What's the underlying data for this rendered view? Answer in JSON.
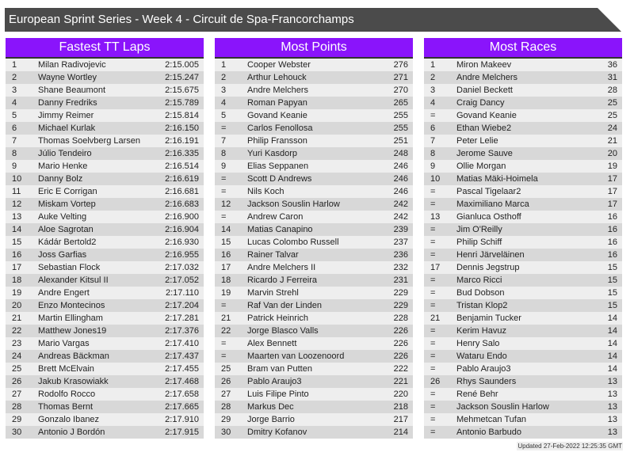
{
  "title": "European Sprint Series - Week 4 - Circuit de Spa-Francorchamps",
  "colors": {
    "title_bar": "#4b4b4b",
    "header": "#8a14fb",
    "row_light": "#eeeeee",
    "row_dark": "#d8d8d8"
  },
  "tables": [
    {
      "title": "Fastest TT Laps",
      "rows": [
        [
          "1",
          "Milan Radivojevic",
          "2:15.005"
        ],
        [
          "2",
          "Wayne Wortley",
          "2:15.247"
        ],
        [
          "3",
          "Shane Beaumont",
          "2:15.675"
        ],
        [
          "4",
          "Danny Fredriks",
          "2:15.789"
        ],
        [
          "5",
          "Jimmy Reimer",
          "2:15.814"
        ],
        [
          "6",
          "Michael Kurlak",
          "2:16.150"
        ],
        [
          "7",
          "Thomas Soelvberg Larsen",
          "2:16.191"
        ],
        [
          "8",
          "Júlio Tendeiro",
          "2:16.335"
        ],
        [
          "9",
          "Mario Henke",
          "2:16.514"
        ],
        [
          "10",
          "Danny Bolz",
          "2:16.619"
        ],
        [
          "11",
          "Eric E Corrigan",
          "2:16.681"
        ],
        [
          "12",
          "Miskam Vortep",
          "2:16.683"
        ],
        [
          "13",
          "Auke Velting",
          "2:16.900"
        ],
        [
          "14",
          "Aloe Sagrotan",
          "2:16.904"
        ],
        [
          "15",
          "Kádár Bertold2",
          "2:16.930"
        ],
        [
          "16",
          "Joss Garfias",
          "2:16.955"
        ],
        [
          "17",
          "Sebastian Flock",
          "2:17.032"
        ],
        [
          "18",
          "Alexander Kitsul II",
          "2:17.052"
        ],
        [
          "19",
          "Andre Engert",
          "2:17.110"
        ],
        [
          "20",
          "Enzo Montecinos",
          "2:17.204"
        ],
        [
          "21",
          "Martin Ellingham",
          "2:17.281"
        ],
        [
          "22",
          "Matthew Jones19",
          "2:17.376"
        ],
        [
          "23",
          "Mario Vargas",
          "2:17.410"
        ],
        [
          "24",
          "Andreas Bäckman",
          "2:17.437"
        ],
        [
          "25",
          "Brett McElvain",
          "2:17.455"
        ],
        [
          "26",
          "Jakub Krasowiakk",
          "2:17.468"
        ],
        [
          "27",
          "Rodolfo Rocco",
          "2:17.658"
        ],
        [
          "28",
          "Thomas Bernt",
          "2:17.665"
        ],
        [
          "29",
          "Gonzalo Ibanez",
          "2:17.910"
        ],
        [
          "30",
          "Antonio J Bordón",
          "2:17.915"
        ]
      ]
    },
    {
      "title": "Most Points",
      "rows": [
        [
          "1",
          "Cooper Webster",
          "276"
        ],
        [
          "2",
          "Arthur Lehouck",
          "271"
        ],
        [
          "3",
          "Andre Melchers",
          "270"
        ],
        [
          "4",
          "Roman Papyan",
          "265"
        ],
        [
          "5",
          "Govand Keanie",
          "255"
        ],
        [
          "=",
          "Carlos Fenollosa",
          "255"
        ],
        [
          "7",
          "Philip Fransson",
          "251"
        ],
        [
          "8",
          "Yuri Kasdorp",
          "248"
        ],
        [
          "9",
          "Elias Seppanen",
          "246"
        ],
        [
          "=",
          "Scott D Andrews",
          "246"
        ],
        [
          "=",
          "Nils Koch",
          "246"
        ],
        [
          "12",
          "Jackson Souslin Harlow",
          "242"
        ],
        [
          "=",
          "Andrew Caron",
          "242"
        ],
        [
          "14",
          "Matias Canapino",
          "239"
        ],
        [
          "15",
          "Lucas Colombo Russell",
          "237"
        ],
        [
          "16",
          "Rainer Talvar",
          "236"
        ],
        [
          "17",
          "Andre Melchers II",
          "232"
        ],
        [
          "18",
          "Ricardo J Ferreira",
          "231"
        ],
        [
          "19",
          "Marvin Strehl",
          "229"
        ],
        [
          "=",
          "Raf Van der Linden",
          "229"
        ],
        [
          "21",
          "Patrick Heinrich",
          "228"
        ],
        [
          "22",
          "Jorge Blasco Valls",
          "226"
        ],
        [
          "=",
          "Alex Bennett",
          "226"
        ],
        [
          "=",
          "Maarten van Loozenoord",
          "226"
        ],
        [
          "25",
          "Bram van Putten",
          "222"
        ],
        [
          "26",
          "Pablo Araujo3",
          "221"
        ],
        [
          "27",
          "Luis Filipe Pinto",
          "220"
        ],
        [
          "28",
          "Markus Dec",
          "218"
        ],
        [
          "29",
          "Jorge Barrio",
          "217"
        ],
        [
          "30",
          "Dmitry Kofanov",
          "214"
        ]
      ]
    },
    {
      "title": "Most Races",
      "rows": [
        [
          "1",
          "Miron Makeev",
          "36"
        ],
        [
          "2",
          "Andre Melchers",
          "31"
        ],
        [
          "3",
          "Daniel Beckett",
          "28"
        ],
        [
          "4",
          "Craig Dancy",
          "25"
        ],
        [
          "=",
          "Govand Keanie",
          "25"
        ],
        [
          "6",
          "Ethan Wiebe2",
          "24"
        ],
        [
          "7",
          "Peter Lelie",
          "21"
        ],
        [
          "8",
          "Jerome Sauve",
          "20"
        ],
        [
          "9",
          "Ollie Morgan",
          "19"
        ],
        [
          "10",
          "Matias Mäki-Hoimela",
          "17"
        ],
        [
          "=",
          "Pascal Tigelaar2",
          "17"
        ],
        [
          "=",
          "Maximiliano Marca",
          "17"
        ],
        [
          "13",
          "Gianluca Osthoff",
          "16"
        ],
        [
          "=",
          "Jim O'Reilly",
          "16"
        ],
        [
          "=",
          "Philip Schiff",
          "16"
        ],
        [
          "=",
          "Henri Järveläinen",
          "16"
        ],
        [
          "17",
          "Dennis Jegstrup",
          "15"
        ],
        [
          "=",
          "Marco Ricci",
          "15"
        ],
        [
          "=",
          "Bud Dobson",
          "15"
        ],
        [
          "=",
          "Tristan Klop2",
          "15"
        ],
        [
          "21",
          "Benjamin Tucker",
          "14"
        ],
        [
          "=",
          "Kerim Havuz",
          "14"
        ],
        [
          "=",
          "Henry Salo",
          "14"
        ],
        [
          "=",
          "Wataru Endo",
          "14"
        ],
        [
          "=",
          "Pablo Araujo3",
          "14"
        ],
        [
          "26",
          "Rhys Saunders",
          "13"
        ],
        [
          "=",
          "René Behr",
          "13"
        ],
        [
          "=",
          "Jackson Souslin Harlow",
          "13"
        ],
        [
          "=",
          "Mehmetcan Tufan",
          "13"
        ],
        [
          "=",
          "Antonio Barbudo",
          "13"
        ]
      ]
    }
  ],
  "updated": "Updated 27-Feb-2022 12:25:35 GMT"
}
